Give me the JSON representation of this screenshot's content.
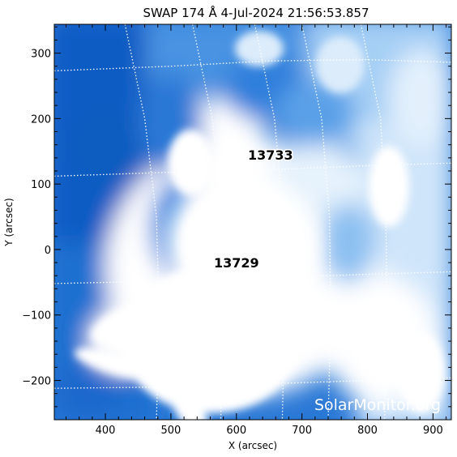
{
  "chart_data": {
    "type": "heatmap",
    "title": "SWAP 174 Å  4-Jul-2024 21:56:53.857",
    "xlabel": "X (arcsec)",
    "ylabel": "Y (arcsec)",
    "xlim": [
      322,
      928
    ],
    "ylim": [
      -260,
      344
    ],
    "x_ticks": [
      400,
      500,
      600,
      700,
      800,
      900
    ],
    "y_ticks": [
      -200,
      -100,
      0,
      100,
      200,
      300
    ],
    "colormap": [
      "#0a5fc8",
      "#3b8ae0",
      "#8ec0f2",
      "#d8ebfb",
      "#ffffff"
    ],
    "active_regions": [
      {
        "label": "13733",
        "x": 652,
        "y": 145
      },
      {
        "label": "13729",
        "x": 600,
        "y": -20
      }
    ],
    "grid": {
      "style": "dotted",
      "latitudes": [
        [
          [
            322,
            273
          ],
          [
            500,
            280
          ],
          [
            650,
            288
          ],
          [
            800,
            290
          ],
          [
            928,
            286
          ]
        ],
        [
          [
            322,
            112
          ],
          [
            500,
            118
          ],
          [
            650,
            122
          ],
          [
            800,
            128
          ],
          [
            928,
            132
          ]
        ],
        [
          [
            322,
            -52
          ],
          [
            500,
            -48
          ],
          [
            650,
            -43
          ],
          [
            800,
            -38
          ],
          [
            928,
            -34
          ]
        ],
        [
          [
            322,
            -212
          ],
          [
            500,
            -210
          ],
          [
            650,
            -205
          ],
          [
            800,
            -200
          ],
          [
            928,
            -196
          ]
        ]
      ],
      "longitudes": [
        [
          [
            430,
            344
          ],
          [
            460,
            200
          ],
          [
            478,
            50
          ],
          [
            482,
            -100
          ],
          [
            478,
            -260
          ]
        ],
        [
          [
            533,
            344
          ],
          [
            563,
            200
          ],
          [
            578,
            50
          ],
          [
            580,
            -100
          ],
          [
            576,
            -260
          ]
        ],
        [
          [
            628,
            344
          ],
          [
            658,
            200
          ],
          [
            672,
            50
          ],
          [
            674,
            -100
          ],
          [
            670,
            -260
          ]
        ],
        [
          [
            700,
            344
          ],
          [
            730,
            200
          ],
          [
            742,
            50
          ],
          [
            744,
            -100
          ],
          [
            740,
            -260
          ]
        ],
        [
          [
            790,
            344
          ],
          [
            820,
            200
          ],
          [
            828,
            50
          ],
          [
            830,
            -100
          ],
          [
            826,
            -260
          ]
        ]
      ]
    }
  },
  "watermark": "SolarMonitor.org"
}
